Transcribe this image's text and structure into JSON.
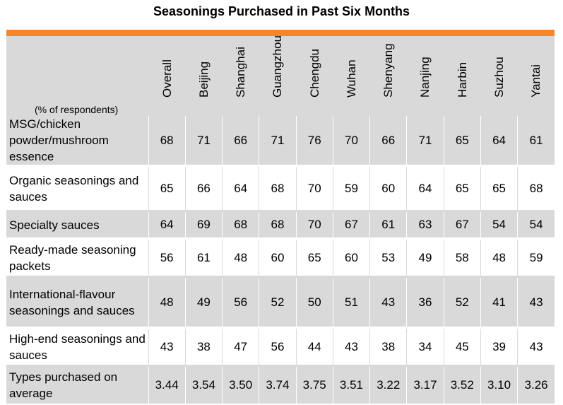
{
  "chart_data": {
    "type": "table",
    "title": "Seasonings Purchased in Past Six Months",
    "unit_label": "(% of respondents)",
    "columns": [
      "Overall",
      "Beijing",
      "Shanghai",
      "Guangzhou",
      "Chengdu",
      "Wuhan",
      "Shenyang",
      "Nanjing",
      "Harbin",
      "Suzhou",
      "Yantai"
    ],
    "rows": [
      {
        "label": "MSG/chicken powder/mushroom essence",
        "values": [
          "68",
          "71",
          "66",
          "71",
          "76",
          "70",
          "66",
          "71",
          "65",
          "64",
          "61"
        ]
      },
      {
        "label": "Organic seasonings and sauces",
        "values": [
          "65",
          "66",
          "64",
          "68",
          "70",
          "59",
          "60",
          "64",
          "65",
          "65",
          "68"
        ]
      },
      {
        "label": "Specialty sauces",
        "values": [
          "64",
          "69",
          "68",
          "68",
          "70",
          "67",
          "61",
          "63",
          "67",
          "54",
          "54"
        ]
      },
      {
        "label": "Ready-made seasoning packets",
        "values": [
          "56",
          "61",
          "48",
          "60",
          "65",
          "60",
          "53",
          "49",
          "58",
          "48",
          "59"
        ]
      },
      {
        "label": "International-flavour seasonings and sauces",
        "values": [
          "48",
          "49",
          "56",
          "52",
          "50",
          "51",
          "43",
          "36",
          "52",
          "41",
          "43"
        ]
      },
      {
        "label": "High-end seasonings and sauces",
        "values": [
          "43",
          "38",
          "47",
          "56",
          "44",
          "43",
          "38",
          "34",
          "45",
          "39",
          "43"
        ]
      },
      {
        "label": "Types purchased on average",
        "values": [
          "3.44",
          "3.54",
          "3.50",
          "3.74",
          "3.75",
          "3.51",
          "3.22",
          "3.17",
          "3.52",
          "3.10",
          "3.26"
        ]
      }
    ],
    "colors": {
      "accent": "#f7862a",
      "shade": "#d9d9d9"
    }
  }
}
